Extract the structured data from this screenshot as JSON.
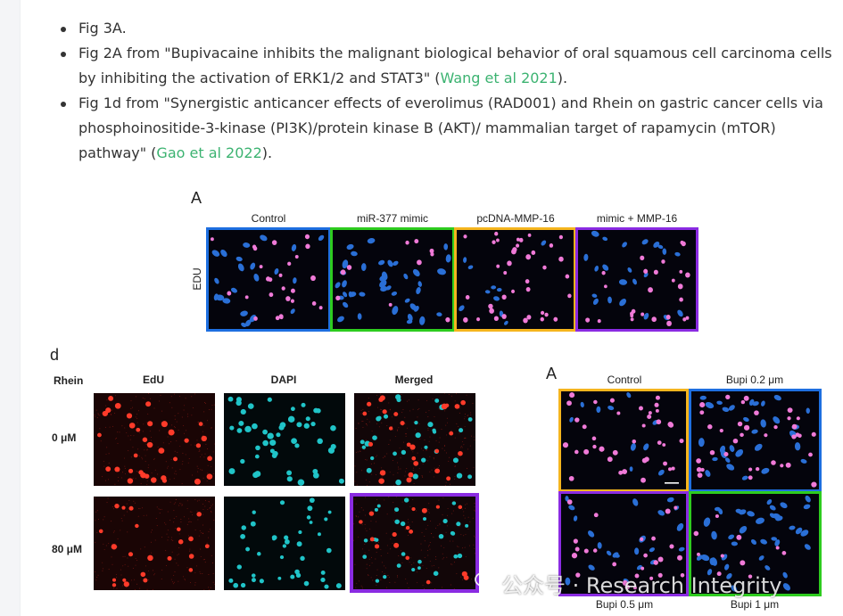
{
  "bullets": [
    {
      "text": "Fig 3A."
    },
    {
      "text": "Fig 2A from \"Bupivacaine inhibits the malignant biological behavior of oral squamous cell carcinoma cells by inhibiting the activation of ERK1/2 and STAT3\" (",
      "link": "Wang et al 2021",
      "after": ")."
    },
    {
      "text": "Fig 1d from \"Synergistic anticancer effects of everolimus (RAD001) and Rhein on gastric cancer cells via phosphoinositide-3-kinase (PI3K)/protein kinase B (AKT)/ mammalian target of rapamycin (mTOR) pathway\" (",
      "link": "Gao et al 2022",
      "after": ")."
    }
  ],
  "figA": {
    "letter": "A",
    "cols": [
      "Control",
      "miR-377 mimic",
      "pcDNA-MMP-16",
      "mimic + MMP-16"
    ],
    "rowlabel": "EDU",
    "frame_colors": [
      "#1e6fe0",
      "#2ecc1f",
      "#f5b51e",
      "#8a2be2"
    ]
  },
  "figD": {
    "letter": "d",
    "corner": "Rhein",
    "cols": [
      "EdU",
      "DAPI",
      "Merged"
    ],
    "rows": [
      "0 μM",
      "80 μM"
    ],
    "highlight_color": "#8a2be2"
  },
  "figB": {
    "letter": "A",
    "top": [
      "Control",
      "Bupi 0.2 μm"
    ],
    "bottom": [
      "Bupi 0.5 μm",
      "Bupi 1 μm"
    ],
    "frame_colors": [
      "#f5b51e",
      "#1e6fe0",
      "#8a2be2",
      "#2ecc1f"
    ]
  },
  "watermark": "公众号 · Research Integrity"
}
